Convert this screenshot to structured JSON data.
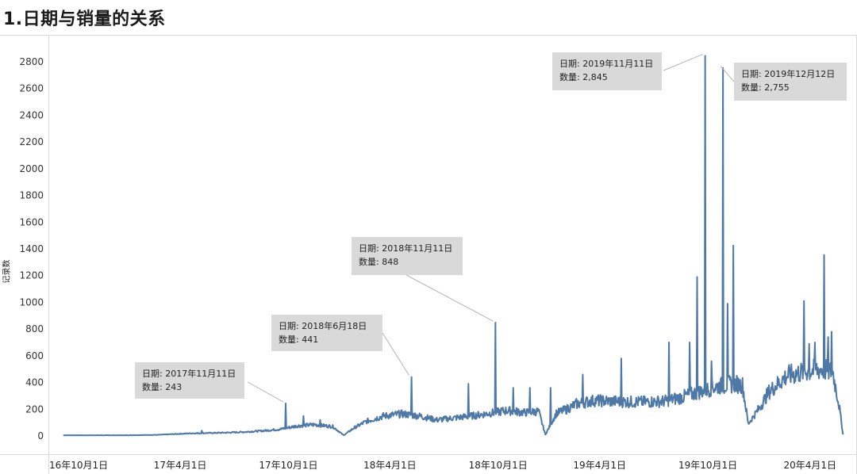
{
  "page": {
    "title": "1.日期与销量的关系"
  },
  "chart_data": {
    "type": "line",
    "ylabel": "记录数",
    "xlabel": "",
    "ylim": [
      0,
      2900
    ],
    "yticks": [
      0,
      200,
      400,
      600,
      800,
      1000,
      1200,
      1400,
      1600,
      1800,
      2000,
      2200,
      2400,
      2600,
      2800
    ],
    "grid": false,
    "line_color": "#4e79a7",
    "xlim": [
      "2016-10-01",
      "2020-10-01"
    ],
    "xticks": [
      {
        "date": "2016-10-01",
        "label": "16年10月1日"
      },
      {
        "date": "2017-04-01",
        "label": "17年4月1日"
      },
      {
        "date": "2017-10-01",
        "label": "17年10月1日"
      },
      {
        "date": "2018-04-01",
        "label": "18年4月1日"
      },
      {
        "date": "2018-10-01",
        "label": "18年10月1日"
      },
      {
        "date": "2019-04-01",
        "label": "19年4月1日"
      },
      {
        "date": "2019-10-01",
        "label": "19年10月1日"
      },
      {
        "date": "2020-04-01",
        "label": "20年4月1日"
      }
    ],
    "baseline": [
      [
        "2016-10-20",
        5
      ],
      [
        "2016-12-01",
        5
      ],
      [
        "2017-02-01",
        5
      ],
      [
        "2017-04-01",
        8
      ],
      [
        "2017-05-01",
        14
      ],
      [
        "2017-06-01",
        20
      ],
      [
        "2017-07-01",
        22
      ],
      [
        "2017-08-01",
        25
      ],
      [
        "2017-09-01",
        30
      ],
      [
        "2017-10-01",
        38
      ],
      [
        "2017-11-01",
        50
      ],
      [
        "2017-12-01",
        75
      ],
      [
        "2018-01-01",
        85
      ],
      [
        "2018-02-01",
        70
      ],
      [
        "2018-02-20",
        5
      ],
      [
        "2018-03-10",
        60
      ],
      [
        "2018-04-01",
        110
      ],
      [
        "2018-05-01",
        150
      ],
      [
        "2018-06-01",
        165
      ],
      [
        "2018-07-01",
        150
      ],
      [
        "2018-08-01",
        120
      ],
      [
        "2018-09-01",
        135
      ],
      [
        "2018-10-01",
        150
      ],
      [
        "2018-11-01",
        170
      ],
      [
        "2018-12-01",
        190
      ],
      [
        "2019-01-01",
        175
      ],
      [
        "2019-01-25",
        185
      ],
      [
        "2019-02-06",
        10
      ],
      [
        "2019-02-25",
        170
      ],
      [
        "2019-03-15",
        200
      ],
      [
        "2019-04-01",
        240
      ],
      [
        "2019-05-01",
        265
      ],
      [
        "2019-06-01",
        260
      ],
      [
        "2019-07-01",
        255
      ],
      [
        "2019-08-01",
        255
      ],
      [
        "2019-09-01",
        260
      ],
      [
        "2019-10-01",
        290
      ],
      [
        "2019-11-01",
        330
      ],
      [
        "2019-12-01",
        370
      ],
      [
        "2020-01-01",
        390
      ],
      [
        "2020-01-15",
        380
      ],
      [
        "2020-01-25",
        90
      ],
      [
        "2020-02-15",
        220
      ],
      [
        "2020-03-01",
        330
      ],
      [
        "2020-04-01",
        450
      ],
      [
        "2020-05-01",
        480
      ],
      [
        "2020-06-01",
        500
      ],
      [
        "2020-06-20",
        480
      ],
      [
        "2020-07-01",
        230
      ],
      [
        "2020-07-08",
        10
      ]
    ],
    "spikes": [
      [
        "2017-06-18",
        40
      ],
      [
        "2017-11-11",
        243
      ],
      [
        "2017-12-12",
        150
      ],
      [
        "2018-01-10",
        120
      ],
      [
        "2018-06-18",
        441
      ],
      [
        "2018-09-25",
        390
      ],
      [
        "2018-11-11",
        848
      ],
      [
        "2018-12-12",
        360
      ],
      [
        "2019-01-10",
        360
      ],
      [
        "2019-02-15",
        360
      ],
      [
        "2019-04-12",
        460
      ],
      [
        "2019-06-18",
        580
      ],
      [
        "2019-09-09",
        700
      ],
      [
        "2019-10-15",
        700
      ],
      [
        "2019-10-28",
        1190
      ],
      [
        "2019-11-11",
        2845
      ],
      [
        "2019-11-22",
        560
      ],
      [
        "2019-12-12",
        2755
      ],
      [
        "2019-12-20",
        990
      ],
      [
        "2019-12-30",
        1425
      ],
      [
        "2020-05-01",
        1010
      ],
      [
        "2020-05-10",
        690
      ],
      [
        "2020-05-20",
        700
      ],
      [
        "2020-06-05",
        1355
      ],
      [
        "2020-06-12",
        740
      ],
      [
        "2020-06-18",
        780
      ]
    ],
    "annotations": [
      {
        "date": "2017-11-11",
        "label_date": "日期: 2017年11月11日",
        "label_value": "数量: 243",
        "value": 243
      },
      {
        "date": "2018-06-18",
        "label_date": "日期: 2018年6月18日",
        "label_value": "数量: 441",
        "value": 441
      },
      {
        "date": "2018-11-11",
        "label_date": "日期: 2018年11月11日",
        "label_value": "数量: 848",
        "value": 848
      },
      {
        "date": "2019-11-11",
        "label_date": "日期: 2019年11月11日",
        "label_value": "数量: 2,845",
        "value": 2845
      },
      {
        "date": "2019-12-12",
        "label_date": "日期: 2019年12月12日",
        "label_value": "数量: 2,755",
        "value": 2755
      }
    ]
  }
}
